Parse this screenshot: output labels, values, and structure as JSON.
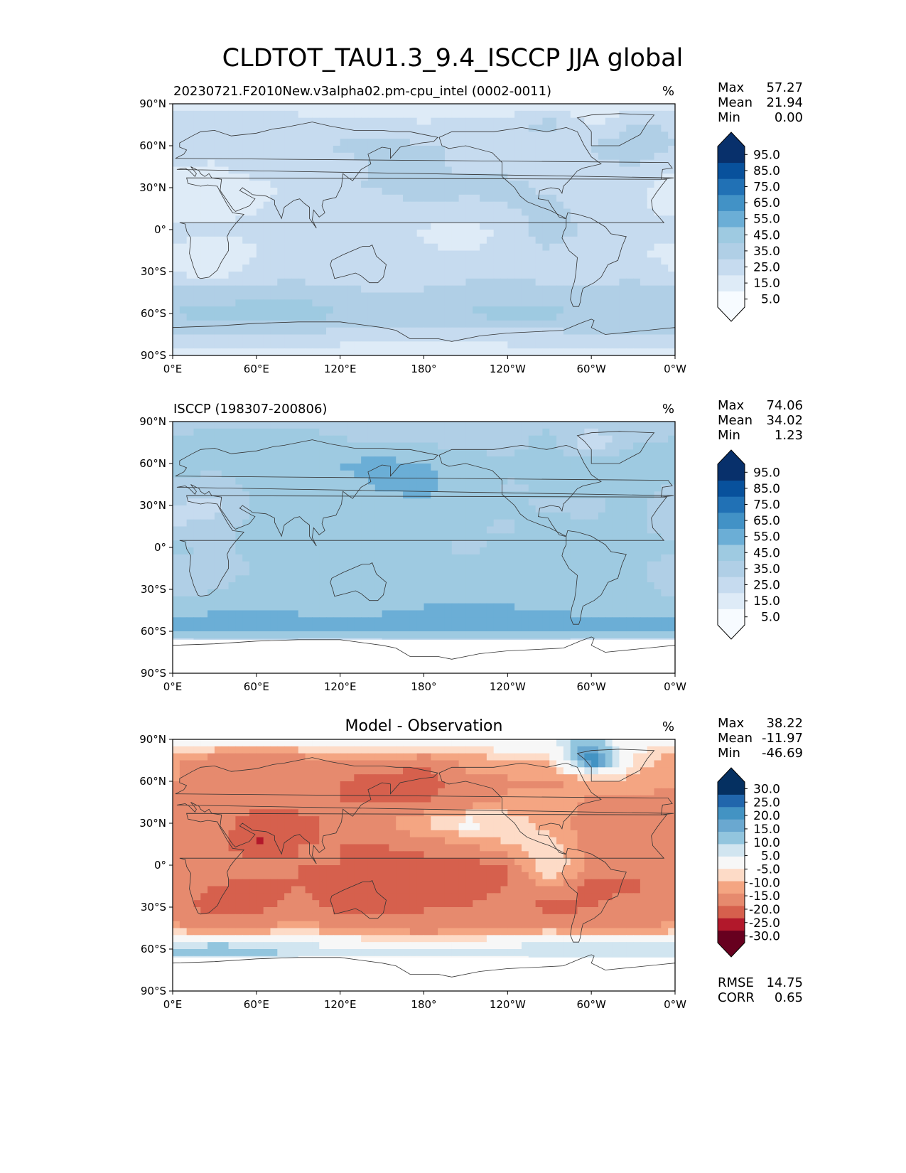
{
  "figure_title": "CLDTOT_TAU1.3_9.4_ISCCP JJA global",
  "colors": {
    "blues": [
      "#f7fbff",
      "#deebf7",
      "#c6dbef",
      "#b0cfe6",
      "#9ecae1",
      "#6baed6",
      "#4292c6",
      "#2171b5",
      "#08519c",
      "#08306b"
    ],
    "diverging": [
      "#67001f",
      "#b2182b",
      "#d6604d",
      "#e68a6e",
      "#f4a582",
      "#fddbc7",
      "#f7f7f7",
      "#d1e5f0",
      "#92c5de",
      "#6aa8d0",
      "#4393c3",
      "#2166ac",
      "#053061"
    ],
    "land": "#333333"
  },
  "chart_data": [
    {
      "type": "heatmap",
      "panel": "model",
      "title_left": "20230721.F2010New.v3alpha02.pm-cpu_intel (0002-0011)",
      "title_center": "",
      "units": "%",
      "stats": {
        "max_label": "Max",
        "max": "57.27",
        "mean_label": "Mean",
        "mean": "21.94",
        "min_label": "Min",
        "min": "0.00"
      },
      "x_ticks": [
        "0°E",
        "60°E",
        "120°E",
        "180°",
        "120°W",
        "60°W",
        "0°W"
      ],
      "y_ticks": [
        "90°N",
        "60°N",
        "30°N",
        "0°",
        "30°S",
        "60°S",
        "90°S"
      ],
      "xlim": [
        0,
        360
      ],
      "ylim": [
        -90,
        90
      ],
      "colorbar_ticks": [
        "95.0",
        "85.0",
        "75.0",
        "65.0",
        "55.0",
        "45.0",
        "35.0",
        "25.0",
        "15.0",
        "5.0"
      ],
      "colorbar_levels": [
        0,
        5,
        15,
        25,
        35,
        45,
        55,
        65,
        75,
        85,
        95,
        100
      ],
      "field": [
        [
          8,
          8,
          8,
          8,
          8,
          8,
          8,
          8,
          8,
          8,
          8,
          8
        ],
        [
          22,
          22,
          24,
          22,
          20,
          18,
          16,
          18,
          20,
          30,
          12,
          28
        ],
        [
          26,
          18,
          22,
          24,
          26,
          28,
          26,
          24,
          22,
          20,
          26,
          30
        ],
        [
          16,
          14,
          20,
          18,
          22,
          26,
          28,
          22,
          20,
          24,
          22,
          26
        ],
        [
          8,
          6,
          12,
          18,
          24,
          26,
          34,
          28,
          30,
          22,
          14,
          20
        ],
        [
          6,
          10,
          14,
          22,
          20,
          18,
          22,
          20,
          24,
          30,
          18,
          20
        ],
        [
          24,
          16,
          20,
          24,
          22,
          18,
          14,
          12,
          16,
          34,
          22,
          26
        ],
        [
          10,
          8,
          14,
          22,
          20,
          18,
          16,
          14,
          18,
          24,
          14,
          16
        ],
        [
          14,
          10,
          18,
          20,
          14,
          16,
          20,
          22,
          24,
          18,
          20,
          24
        ],
        [
          28,
          28,
          30,
          32,
          28,
          26,
          26,
          28,
          30,
          30,
          26,
          28
        ],
        [
          36,
          40,
          42,
          40,
          36,
          34,
          34,
          36,
          40,
          38,
          34,
          34
        ],
        [
          24,
          26,
          26,
          24,
          22,
          20,
          20,
          20,
          22,
          22,
          24,
          24
        ],
        [
          8,
          8,
          8,
          8,
          8,
          8,
          8,
          8,
          8,
          8,
          8,
          8
        ]
      ]
    },
    {
      "type": "heatmap",
      "panel": "observation",
      "title_left": "ISCCP (198307-200806)",
      "title_center": "",
      "units": "%",
      "stats": {
        "max_label": "Max",
        "max": "74.06",
        "mean_label": "Mean",
        "mean": "34.02",
        "min_label": "Min",
        "min": "1.23"
      },
      "x_ticks": [
        "0°E",
        "60°E",
        "120°E",
        "180°",
        "120°W",
        "60°W",
        "0°W"
      ],
      "y_ticks": [
        "90°N",
        "60°N",
        "30°N",
        "0°",
        "30°S",
        "60°S",
        "90°S"
      ],
      "xlim": [
        0,
        360
      ],
      "ylim": [
        -90,
        90
      ],
      "colorbar_ticks": [
        "95.0",
        "85.0",
        "75.0",
        "65.0",
        "55.0",
        "45.0",
        "35.0",
        "25.0",
        "15.0",
        "5.0"
      ],
      "colorbar_levels": [
        0,
        5,
        15,
        25,
        35,
        45,
        55,
        65,
        75,
        85,
        95,
        100
      ],
      "field": [
        [
          32,
          32,
          32,
          32,
          32,
          32,
          32,
          32,
          32,
          32,
          32,
          32
        ],
        [
          36,
          40,
          44,
          40,
          36,
          34,
          34,
          32,
          30,
          40,
          14,
          34
        ],
        [
          40,
          38,
          40,
          42,
          46,
          48,
          46,
          40,
          38,
          36,
          40,
          42
        ],
        [
          34,
          30,
          38,
          36,
          42,
          46,
          48,
          40,
          34,
          36,
          38,
          42
        ],
        [
          24,
          22,
          36,
          40,
          40,
          42,
          44,
          40,
          36,
          34,
          32,
          40
        ],
        [
          24,
          28,
          40,
          42,
          40,
          38,
          40,
          36,
          34,
          38,
          36,
          40
        ],
        [
          40,
          32,
          38,
          44,
          42,
          40,
          36,
          34,
          36,
          38,
          38,
          40
        ],
        [
          26,
          28,
          36,
          42,
          42,
          40,
          38,
          36,
          38,
          38,
          36,
          38
        ],
        [
          30,
          34,
          40,
          38,
          36,
          38,
          40,
          42,
          42,
          40,
          40,
          40
        ],
        [
          42,
          44,
          46,
          44,
          44,
          44,
          46,
          46,
          46,
          44,
          44,
          44
        ],
        [
          48,
          52,
          54,
          50,
          48,
          50,
          52,
          52,
          50,
          52,
          48,
          48
        ],
        [
          0,
          0,
          0,
          0,
          0,
          0,
          0,
          0,
          0,
          0,
          0,
          0
        ],
        [
          0,
          0,
          0,
          0,
          0,
          0,
          0,
          0,
          0,
          0,
          0,
          0
        ]
      ]
    },
    {
      "type": "heatmap",
      "panel": "difference",
      "title_left": "",
      "title_center": "Model - Observation",
      "units": "%",
      "stats": {
        "max_label": "Max",
        "max": "38.22",
        "mean_label": "Mean",
        "mean": "-11.97",
        "min_label": "Min",
        "min": "-46.69"
      },
      "extra_stats": {
        "rmse_label": "RMSE",
        "rmse": "14.75",
        "corr_label": "CORR",
        "corr": "0.65"
      },
      "x_ticks": [
        "0°E",
        "60°E",
        "120°E",
        "180°",
        "120°W",
        "60°W",
        "0°W"
      ],
      "y_ticks": [
        "90°N",
        "60°N",
        "30°N",
        "0°",
        "30°S",
        "60°S",
        "90°S"
      ],
      "xlim": [
        0,
        360
      ],
      "ylim": [
        -90,
        90
      ],
      "colorbar_ticks": [
        "30.0",
        "25.0",
        "20.0",
        "15.0",
        "10.0",
        "5.0",
        "-5.0",
        "-10.0",
        "-15.0",
        "-20.0",
        "-25.0",
        "-30.0"
      ],
      "colorbar_levels": [
        -40,
        -30,
        -25,
        -20,
        -15,
        -10,
        -5,
        5,
        10,
        15,
        20,
        25,
        30,
        40
      ],
      "field": [
        [
          -2,
          -2,
          -2,
          -2,
          -2,
          -2,
          -2,
          -2,
          2,
          6,
          12,
          -2
        ],
        [
          -14,
          -18,
          -20,
          -18,
          -16,
          -16,
          -18,
          -14,
          -10,
          -10,
          30,
          -6
        ],
        [
          -14,
          -20,
          -18,
          -18,
          -20,
          -22,
          -24,
          -16,
          -16,
          -16,
          -14,
          -12
        ],
        [
          -18,
          -16,
          -18,
          -18,
          -20,
          -20,
          -20,
          -18,
          -14,
          -12,
          -16,
          -16
        ],
        [
          -16,
          -16,
          -24,
          -22,
          -18,
          -16,
          -10,
          -2,
          -6,
          -12,
          -18,
          -20
        ],
        [
          -18,
          -18,
          -26,
          -20,
          -20,
          -20,
          -18,
          -16,
          -10,
          -8,
          -18,
          -20
        ],
        [
          -16,
          -16,
          -18,
          -20,
          -20,
          -22,
          -22,
          -22,
          -20,
          -4,
          -16,
          -14
        ],
        [
          -16,
          -20,
          -22,
          -20,
          -22,
          -22,
          -22,
          -22,
          -20,
          -14,
          -22,
          -22
        ],
        [
          -16,
          -24,
          -22,
          -18,
          -22,
          -22,
          -20,
          -20,
          -18,
          -22,
          -20,
          -16
        ],
        [
          -14,
          -16,
          -16,
          -12,
          -16,
          -18,
          -20,
          -18,
          -16,
          -14,
          -18,
          -16
        ],
        [
          12,
          16,
          14,
          10,
          8,
          6,
          6,
          6,
          8,
          12,
          10,
          10
        ],
        [
          0,
          0,
          0,
          0,
          0,
          0,
          0,
          0,
          0,
          0,
          0,
          0
        ],
        [
          0,
          0,
          0,
          0,
          0,
          0,
          0,
          0,
          0,
          0,
          0,
          0
        ]
      ]
    }
  ]
}
